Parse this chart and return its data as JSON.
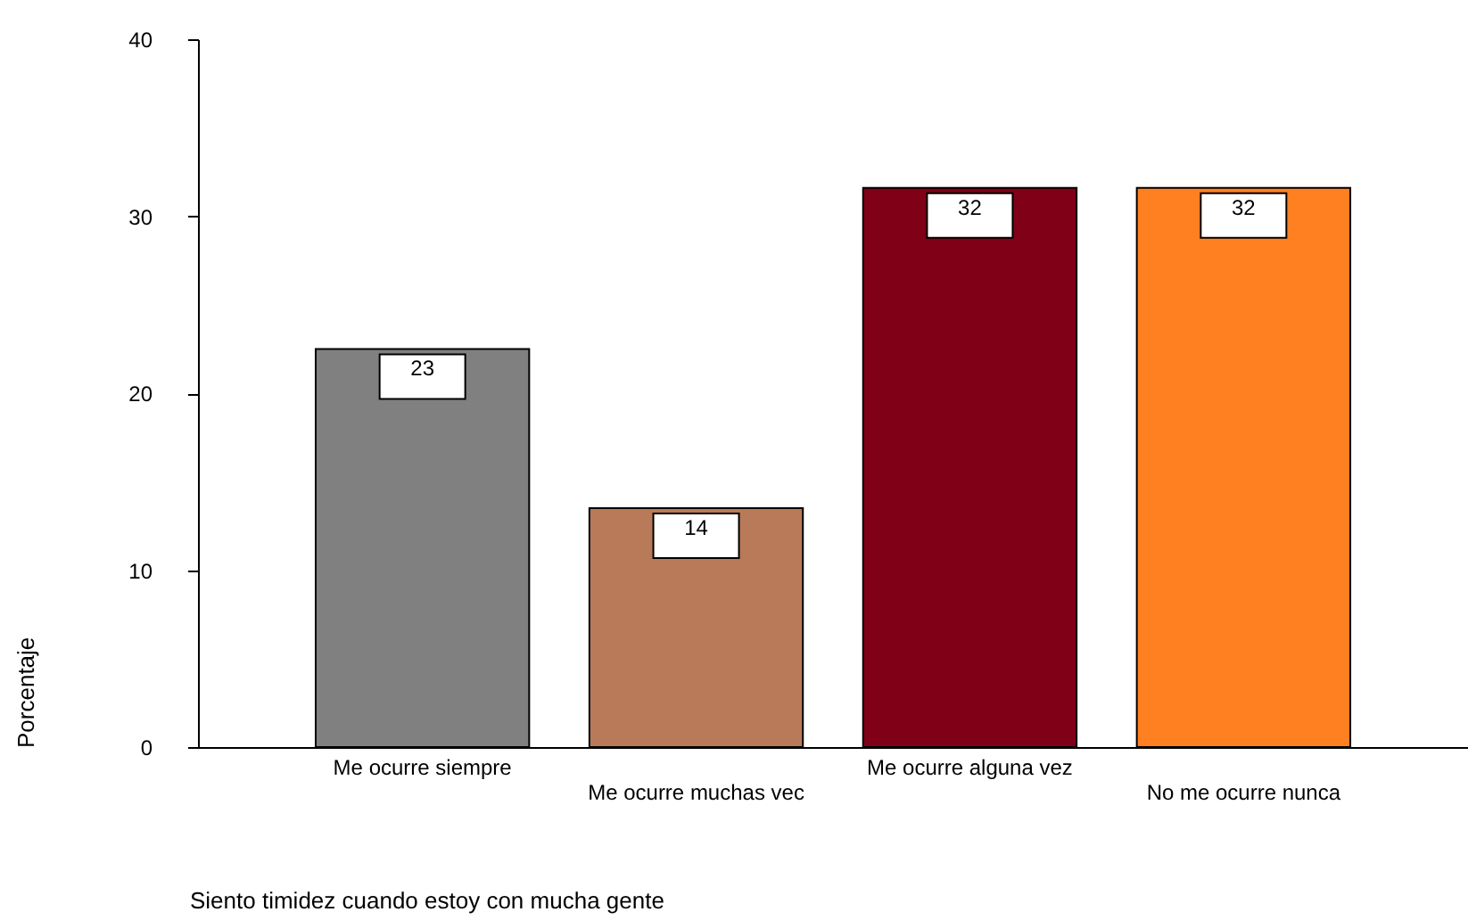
{
  "chart_data": {
    "type": "bar",
    "xlabel": "Siento timidez cuando estoy con mucha gente",
    "ylabel": "Porcentaje",
    "categories": [
      "Me ocurre siempre",
      "Me ocurre muchas vec",
      "Me ocurre alguna vez",
      "No me ocurre nunca"
    ],
    "values": [
      22.5,
      13.5,
      31.6,
      31.6
    ],
    "value_labels": [
      "23",
      "14",
      "32",
      "32"
    ],
    "colors": [
      "#808080",
      "#b87a58",
      "#800018",
      "#ff8020"
    ],
    "ylim": [
      0,
      40
    ],
    "yticks": [
      0,
      10,
      20,
      30,
      40
    ],
    "grid": false
  }
}
